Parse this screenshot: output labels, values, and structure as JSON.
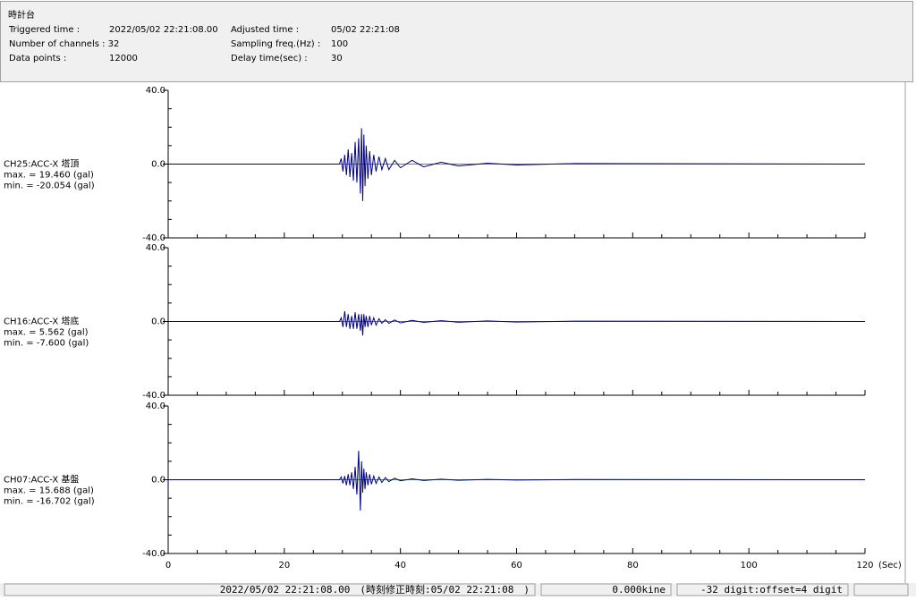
{
  "header": {
    "title": "時計台",
    "fields": [
      [
        "Triggered time :",
        "2022/05/02 22:21:08.00",
        "Adjusted time :",
        "05/02 22:21:08"
      ],
      [
        "Number of channels : 32",
        "",
        "Sampling freq.(Hz) :",
        "100"
      ],
      [
        "Data points :",
        "12000",
        "Delay time(sec) :",
        "30"
      ]
    ]
  },
  "chart_data": [
    {
      "type": "line",
      "title": "CH25:ACC-X 塔頂",
      "max_label": "max. = 19.460 (gal)",
      "min_label": "min. = -20.054 (gal)",
      "x": [
        0,
        29.5,
        29.8,
        30.1,
        30.4,
        30.7,
        31,
        31.3,
        31.6,
        31.9,
        32.2,
        32.5,
        32.8,
        33.1,
        33.3,
        33.5,
        33.7,
        33.9,
        34.1,
        34.4,
        34.7,
        35,
        35.4,
        35.8,
        36.3,
        36.8,
        37.4,
        38,
        39,
        40,
        42,
        44,
        47,
        50,
        55,
        60,
        70,
        120
      ],
      "series": [
        {
          "name": "CH25:ACC-X 塔頂",
          "color": "#000080",
          "values": [
            0,
            0,
            3,
            -4,
            5,
            -6,
            8,
            -7,
            6,
            -9,
            12,
            -10,
            14,
            -16,
            19.46,
            -20.054,
            16,
            -12,
            10,
            -8,
            7,
            -6,
            5,
            -4,
            4,
            -3,
            3,
            -3,
            2,
            -2,
            2,
            -1.5,
            1,
            -1,
            0.5,
            -0.5,
            0.3,
            0
          ]
        }
      ],
      "xlim": [
        0,
        120
      ],
      "ylim": [
        -40,
        40
      ],
      "yticks": [
        {
          "value": 40,
          "label": "40.0"
        },
        {
          "value": 0,
          "label": "0.0"
        },
        {
          "value": -40,
          "label": "-40.0"
        }
      ],
      "yminor_ticks": [
        30,
        20,
        10,
        -10,
        -20,
        -30
      ],
      "xticks": [
        0,
        20,
        40,
        60,
        80,
        100,
        120
      ],
      "xminor_ticks": [
        5,
        10,
        15,
        25,
        30,
        35,
        45,
        50,
        55,
        65,
        70,
        75,
        85,
        90,
        95,
        105,
        110,
        115
      ]
    },
    {
      "type": "line",
      "title": "CH16:ACC-X 塔底",
      "max_label": "max. = 5.562 (gal)",
      "min_label": "min. = -7.600 (gal)",
      "x": [
        0,
        29.5,
        29.8,
        30.1,
        30.4,
        30.7,
        31,
        31.3,
        31.6,
        31.9,
        32.2,
        32.5,
        32.8,
        33.1,
        33.3,
        33.5,
        33.7,
        33.9,
        34.1,
        34.4,
        34.7,
        35,
        35.4,
        35.8,
        36.3,
        36.8,
        37.4,
        38,
        39,
        40,
        42,
        44,
        47,
        50,
        55,
        60,
        70,
        120
      ],
      "series": [
        {
          "name": "CH16:ACC-X 塔底",
          "color": "#000080",
          "values": [
            0,
            0,
            2,
            -3,
            5.562,
            -3,
            4,
            -4,
            3,
            -4,
            5,
            -4,
            4,
            -5,
            4,
            -7.6,
            4,
            -3,
            3,
            -3,
            3,
            -2,
            2,
            -2,
            1.5,
            -1,
            1,
            -1,
            0.8,
            -0.8,
            0.6,
            -0.5,
            0.4,
            -0.4,
            0.3,
            -0.3,
            0.2,
            0
          ]
        }
      ],
      "xlim": [
        0,
        120
      ],
      "ylim": [
        -40,
        40
      ],
      "yticks": [
        {
          "value": 40,
          "label": "40.0"
        },
        {
          "value": 0,
          "label": "0.0"
        },
        {
          "value": -40,
          "label": "-40.0"
        }
      ],
      "yminor_ticks": [
        30,
        20,
        10,
        -10,
        -20,
        -30
      ],
      "xticks": [
        0,
        20,
        40,
        60,
        80,
        100,
        120
      ],
      "xminor_ticks": [
        5,
        10,
        15,
        25,
        30,
        35,
        45,
        50,
        55,
        65,
        70,
        75,
        85,
        90,
        95,
        105,
        110,
        115
      ]
    },
    {
      "type": "line",
      "title": "CH07:ACC-X 基盤",
      "max_label": "max. = 15.688 (gal)",
      "min_label": "min. = -16.702 (gal)",
      "x": [
        0,
        29.5,
        29.8,
        30.1,
        30.4,
        30.7,
        31,
        31.3,
        31.6,
        31.9,
        32.2,
        32.5,
        32.8,
        33.1,
        33.3,
        33.5,
        33.7,
        33.9,
        34.1,
        34.4,
        34.7,
        35,
        35.4,
        35.8,
        36.3,
        36.8,
        37.4,
        38,
        39,
        40,
        42,
        44,
        47,
        50,
        55,
        60,
        70,
        120
      ],
      "series": [
        {
          "name": "CH07:ACC-X 基盤",
          "color": "#000080",
          "values": [
            0,
            0,
            1.5,
            -2,
            2,
            -3,
            3,
            -3,
            4,
            -5,
            7,
            -8,
            15.688,
            -16.702,
            10,
            -7,
            6,
            -5,
            4,
            -3,
            3,
            -2.5,
            2,
            -2,
            1.5,
            -1.5,
            1.2,
            -1,
            0.8,
            -0.6,
            0.5,
            -0.4,
            0.3,
            -0.3,
            0.2,
            -0.2,
            0.1,
            0
          ]
        }
      ],
      "xlim": [
        0,
        120
      ],
      "ylim": [
        -40,
        40
      ],
      "yticks": [
        {
          "value": 40,
          "label": "40.0"
        },
        {
          "value": 0,
          "label": "0.0"
        },
        {
          "value": -40,
          "label": "-40.0"
        }
      ],
      "yminor_ticks": [
        30,
        20,
        10,
        -10,
        -20,
        -30
      ],
      "xticks": [
        0,
        20,
        40,
        60,
        80,
        100,
        120
      ],
      "xminor_ticks": [
        5,
        10,
        15,
        25,
        30,
        35,
        45,
        50,
        55,
        65,
        70,
        75,
        85,
        90,
        95,
        105,
        110,
        115
      ],
      "x_label": "(Sec)"
    }
  ],
  "status_bar": [
    "2022/05/02 22:21:08.00　(時刻修正時刻:05/02 22:21:08　)",
    "0.000kine",
    "-32 digit:offset=4 digit"
  ]
}
